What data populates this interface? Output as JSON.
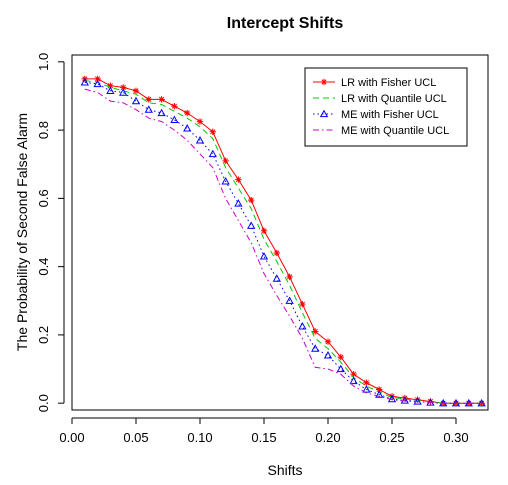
{
  "chart_data": {
    "type": "line",
    "title": "Intercept Shifts",
    "xlabel": "Shifts",
    "ylabel": "The Probability of Second False Alarm",
    "xlim": [
      0.0,
      0.325
    ],
    "ylim": [
      -0.02,
      1.02
    ],
    "xticks": [
      0.0,
      0.05,
      0.1,
      0.15,
      0.2,
      0.25,
      0.3
    ],
    "xtick_labels": [
      "0.00",
      "0.05",
      "0.10",
      "0.15",
      "0.20",
      "0.25",
      "0.30"
    ],
    "yticks": [
      0.0,
      0.2,
      0.4,
      0.6,
      0.8,
      1.0
    ],
    "ytick_labels": [
      "0.0",
      "0.2",
      "0.4",
      "0.6",
      "0.8",
      "1.0"
    ],
    "grid": false,
    "legend_position": "top-right",
    "x": [
      0.01,
      0.02,
      0.03,
      0.04,
      0.05,
      0.06,
      0.07,
      0.08,
      0.09,
      0.1,
      0.11,
      0.12,
      0.13,
      0.14,
      0.15,
      0.16,
      0.17,
      0.18,
      0.19,
      0.2,
      0.21,
      0.22,
      0.23,
      0.24,
      0.25,
      0.26,
      0.27,
      0.28,
      0.29,
      0.3,
      0.31,
      0.32
    ],
    "series": [
      {
        "name": "LR with Fisher UCL",
        "color": "#ff0000",
        "dash": "solid",
        "marker": "star",
        "values": [
          0.95,
          0.95,
          0.93,
          0.925,
          0.915,
          0.89,
          0.89,
          0.87,
          0.85,
          0.825,
          0.795,
          0.71,
          0.655,
          0.595,
          0.505,
          0.44,
          0.37,
          0.29,
          0.21,
          0.18,
          0.135,
          0.085,
          0.06,
          0.04,
          0.02,
          0.015,
          0.01,
          0.005,
          0.0,
          0.0,
          0.0,
          0.0
        ]
      },
      {
        "name": "LR with Quantile UCL",
        "color": "#00cc00",
        "dash": "dash",
        "marker": "none",
        "values": [
          0.945,
          0.94,
          0.925,
          0.915,
          0.905,
          0.88,
          0.875,
          0.855,
          0.835,
          0.81,
          0.775,
          0.69,
          0.63,
          0.57,
          0.48,
          0.415,
          0.345,
          0.265,
          0.19,
          0.16,
          0.12,
          0.075,
          0.05,
          0.033,
          0.017,
          0.012,
          0.008,
          0.004,
          0.0,
          0.0,
          0.0,
          0.0
        ]
      },
      {
        "name": "ME with Fisher UCL",
        "color": "#0000ff",
        "dash": "dot",
        "marker": "triangle",
        "values": [
          0.94,
          0.935,
          0.915,
          0.91,
          0.885,
          0.86,
          0.85,
          0.83,
          0.805,
          0.77,
          0.73,
          0.65,
          0.585,
          0.52,
          0.43,
          0.365,
          0.3,
          0.225,
          0.16,
          0.14,
          0.1,
          0.065,
          0.04,
          0.025,
          0.012,
          0.008,
          0.005,
          0.002,
          0.0,
          0.0,
          0.0,
          0.0
        ]
      },
      {
        "name": "ME with Quantile UCL",
        "color": "#cc00cc",
        "dash": "dashdot",
        "marker": "none",
        "values": [
          0.92,
          0.91,
          0.885,
          0.88,
          0.86,
          0.835,
          0.825,
          0.8,
          0.77,
          0.73,
          0.69,
          0.6,
          0.535,
          0.47,
          0.38,
          0.315,
          0.255,
          0.19,
          0.105,
          0.1,
          0.085,
          0.05,
          0.03,
          0.02,
          0.01,
          0.006,
          0.004,
          0.002,
          0.0,
          0.0,
          0.0,
          0.0
        ]
      }
    ]
  }
}
